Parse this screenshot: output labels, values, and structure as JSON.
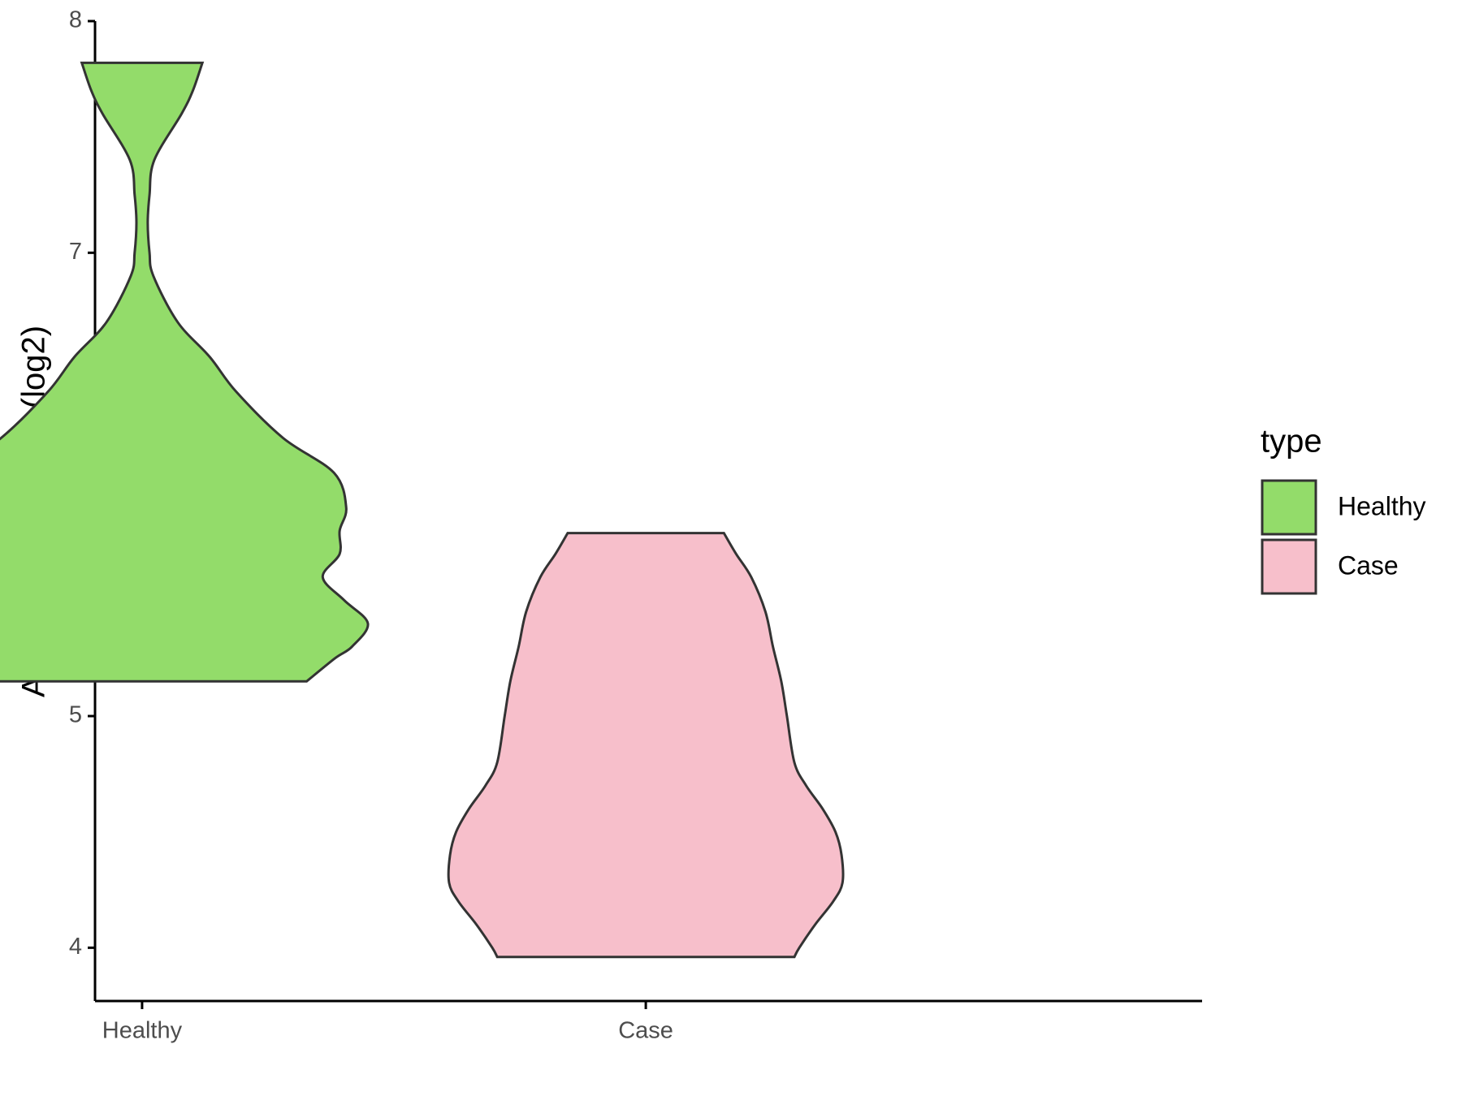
{
  "chart_data": {
    "type": "violin",
    "y_label": "Antigen Expression (log2)",
    "legend_title": "type",
    "legend": "right",
    "categories": [
      "Healthy",
      "Case"
    ],
    "ylim": [
      3.77,
      8.0
    ],
    "yticks": [
      4,
      5,
      6,
      7,
      8
    ],
    "series": [
      {
        "name": "Healthy",
        "color": "#93dc6a",
        "values": [
          7.82,
          7.7,
          7.6,
          7.4,
          7.25,
          7.13,
          7.0,
          6.9,
          6.7,
          6.55,
          6.4,
          6.2,
          6.05,
          5.9,
          5.8,
          5.7,
          5.6,
          5.5,
          5.4,
          5.3,
          5.25,
          5.15
        ],
        "density": [
          0.267,
          0.225,
          0.175,
          0.054,
          0.033,
          0.025,
          0.033,
          0.05,
          0.158,
          0.3,
          0.417,
          0.625,
          0.85,
          0.904,
          0.875,
          0.875,
          0.8,
          0.895,
          1.0,
          0.93,
          0.855,
          0.729
        ]
      },
      {
        "name": "Case",
        "color": "#f7bfcb",
        "values": [
          5.79,
          5.7,
          5.6,
          5.45,
          5.3,
          5.15,
          5.0,
          4.8,
          4.7,
          4.6,
          4.5,
          4.4,
          4.28,
          4.2,
          4.1,
          4.0,
          3.96
        ],
        "density": [
          0.346,
          0.4,
          0.467,
          0.53,
          0.563,
          0.6,
          0.625,
          0.658,
          0.71,
          0.783,
          0.84,
          0.867,
          0.871,
          0.83,
          0.75,
          0.68,
          0.658
        ]
      }
    ]
  }
}
